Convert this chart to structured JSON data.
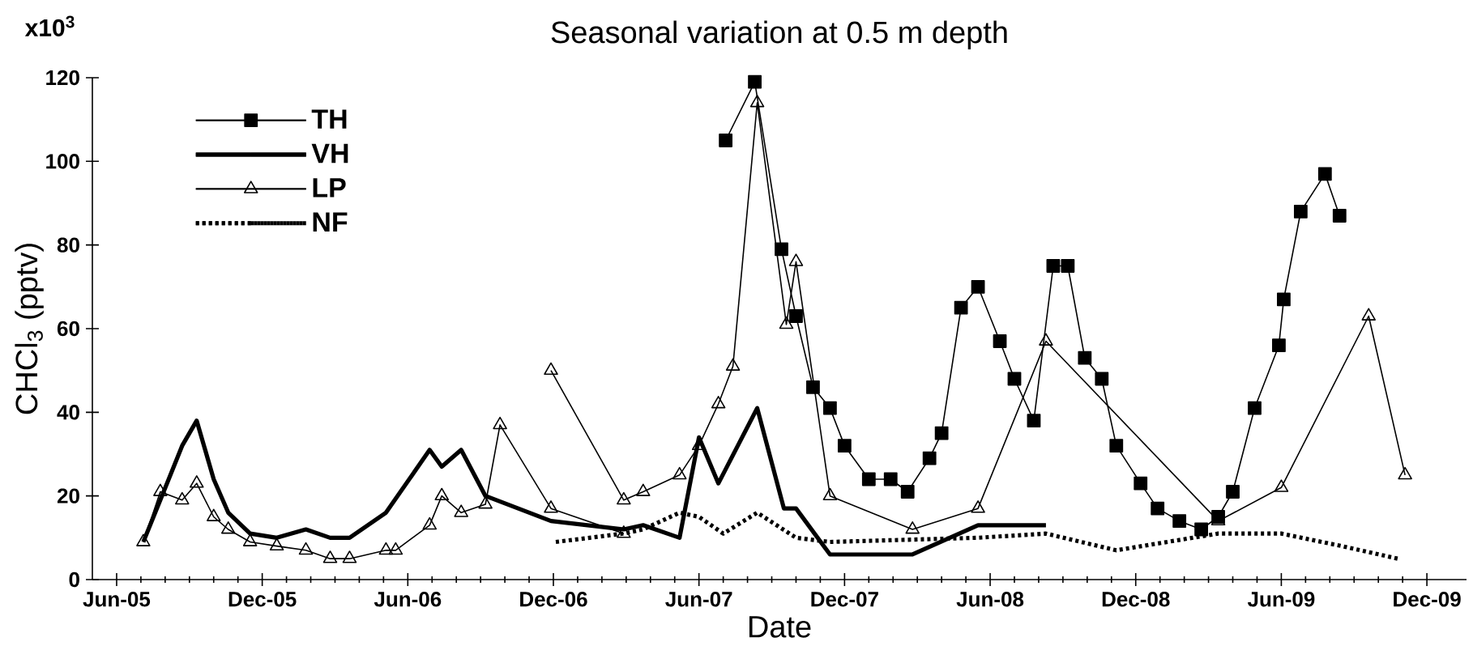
{
  "chart_data": {
    "type": "line",
    "title": "Seasonal variation at 0.5 m depth",
    "xlabel": "Date",
    "ylabel": "CHCl$_{3}$ (pptv)",
    "annotations": [
      "x10$^{3}$"
    ],
    "xlim": [
      "2005-05-01",
      "2010-01-20"
    ],
    "ylim": [
      0,
      120
    ],
    "xticks": [
      {
        "value": "2005-06",
        "label": "Jun-05"
      },
      {
        "value": "2005-12",
        "label": "Dec-05"
      },
      {
        "value": "2006-06",
        "label": "Jun-06"
      },
      {
        "value": "2006-12",
        "label": "Dec-06"
      },
      {
        "value": "2007-06",
        "label": "Jun-07"
      },
      {
        "value": "2007-12",
        "label": "Dec-07"
      },
      {
        "value": "2008-06",
        "label": "Jun-08"
      },
      {
        "value": "2008-12",
        "label": "Dec-08"
      },
      {
        "value": "2009-06",
        "label": "Jun-09"
      },
      {
        "value": "2009-12",
        "label": "Dec-09"
      }
    ],
    "yticks": [
      0,
      20,
      40,
      60,
      80,
      100,
      120
    ],
    "legend": "top left",
    "series": [
      {
        "name": "TH",
        "color": "#000000",
        "marker": "square",
        "line_style": "solid",
        "x": [
          "2007-07-04",
          "2007-08-10",
          "2007-09-13",
          "2007-10-01",
          "2007-10-22",
          "2007-11-13",
          "2007-12-01",
          "2008-01-01",
          "2008-01-28",
          "2008-02-19",
          "2008-03-16",
          "2008-04-01",
          "2008-04-25",
          "2008-05-16",
          "2008-06-13",
          "2008-07-01",
          "2008-07-25",
          "2008-08-19",
          "2008-09-07",
          "2008-09-28",
          "2008-10-19",
          "2008-11-07",
          "2008-12-07",
          "2008-12-28",
          "2009-01-25",
          "2009-02-22",
          "2009-03-13",
          "2009-04-01",
          "2009-04-28",
          "2009-05-28",
          "2009-06-04",
          "2009-06-25",
          "2009-07-25",
          "2009-08-13"
        ],
        "values": [
          105,
          119,
          79,
          63,
          46,
          41,
          32,
          24,
          24,
          21,
          29,
          35,
          65,
          70,
          57,
          48,
          38,
          75,
          75,
          53,
          48,
          32,
          23,
          17,
          14,
          12,
          15,
          21,
          41,
          56,
          67,
          88,
          97,
          87
        ]
      },
      {
        "name": "VH",
        "color": "#000000",
        "marker": "none",
        "line_style": "solid",
        "x": [
          "2005-07-04",
          "2005-07-25",
          "2005-08-22",
          "2005-09-10",
          "2005-10-01",
          "2005-10-19",
          "2005-11-16",
          "2005-12-19",
          "2006-01-25",
          "2006-02-25",
          "2006-03-19",
          "2006-05-04",
          "2006-06-28",
          "2006-07-13",
          "2006-08-07",
          "2006-09-07",
          "2006-11-28",
          "2007-02-28",
          "2007-03-22",
          "2007-05-07",
          "2007-06-01",
          "2007-06-25",
          "2007-08-13",
          "2007-09-16",
          "2007-10-01",
          "2007-11-13",
          "2008-02-25",
          "2008-05-16",
          "2008-08-10"
        ],
        "values": [
          9,
          19,
          32,
          38,
          24,
          16,
          11,
          10,
          12,
          10,
          10,
          16,
          31,
          27,
          31,
          20,
          14,
          12,
          13,
          10,
          34,
          23,
          41,
          17,
          17,
          6,
          6,
          13,
          13
        ]
      },
      {
        "name": "LP",
        "color": "#000000",
        "marker": "triangle",
        "line_style": "solid",
        "x": [
          "2005-07-04",
          "2005-07-25",
          "2005-08-22",
          "2005-09-10",
          "2005-10-01",
          "2005-10-19",
          "2005-11-16",
          "2005-12-19",
          "2006-01-25",
          "2006-02-25",
          "2006-03-19",
          "2006-05-04",
          "2006-05-16",
          "2006-06-28",
          "2006-07-13",
          "2006-08-07",
          "2006-09-07",
          "2006-09-25",
          "2006-11-28",
          "2007-02-28"
        ],
        "values": [
          9,
          21,
          19,
          23,
          15,
          12,
          9,
          8,
          7,
          5,
          5,
          7,
          7,
          13,
          20,
          16,
          18,
          37,
          17,
          11
        ]
      },
      {
        "color": "#000000",
        "marker": "triangle",
        "line_style": "solid",
        "x": [
          "2006-11-28",
          "2007-02-28",
          "2007-03-22",
          "2007-05-07",
          "2007-06-01",
          "2007-06-25",
          "2007-07-13",
          "2007-08-13",
          "2007-09-19",
          "2007-10-01",
          "2007-11-13",
          "2008-02-25",
          "2008-05-16",
          "2008-08-10",
          "2009-03-13",
          "2009-06-01",
          "2009-09-19",
          "2009-11-04"
        ],
        "values": [
          50,
          19,
          21,
          25,
          32,
          42,
          51,
          114,
          61,
          76,
          20,
          12,
          17,
          57,
          14,
          22,
          63,
          25
        ]
      },
      {
        "name": "NF",
        "color": "#000000",
        "marker": "none",
        "line_style": "dotted",
        "x": [
          "2006-12-04",
          "2007-02-28",
          "2007-03-22",
          "2007-05-07",
          "2007-06-01",
          "2007-07-01",
          "2007-08-13",
          "2007-10-01",
          "2007-11-13",
          "2008-05-16",
          "2008-08-10",
          "2008-11-07",
          "2009-03-13",
          "2009-06-01",
          "2009-08-16",
          "2009-10-25"
        ],
        "values": [
          9,
          11,
          12,
          16,
          15,
          11,
          16,
          10,
          9,
          10,
          11,
          7,
          11,
          11,
          8,
          5
        ]
      }
    ]
  }
}
